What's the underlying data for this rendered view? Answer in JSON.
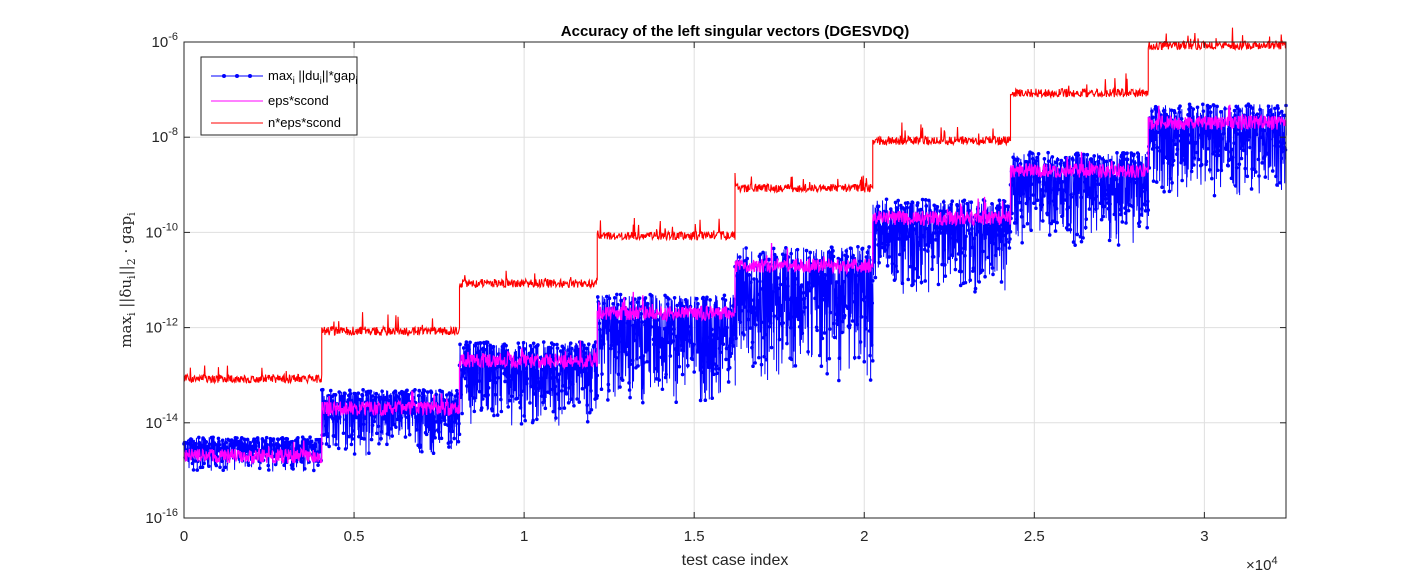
{
  "chart_data": {
    "type": "line",
    "title": "Accuracy of the left singular vectors (DGESVDQ)",
    "xlabel": "test case index",
    "ylabel": "max_i ||δu_i||_2 · gap_i",
    "x_multiplier": "×10",
    "x_multiplier_exp": "4",
    "xlim": [
      0,
      32400
    ],
    "ylim": [
      1e-16,
      1e-06
    ],
    "yscale": "log",
    "grid": true,
    "legend_position": "top-left",
    "x_ticks": [
      0,
      5000,
      10000,
      15000,
      20000,
      25000,
      30000
    ],
    "x_tick_labels": [
      "0",
      "0.5",
      "1",
      "1.5",
      "2",
      "2.5",
      "3"
    ],
    "y_ticks": [
      1e-16,
      1e-14,
      1e-12,
      1e-10,
      1e-08,
      1e-06
    ],
    "y_tick_base": "10",
    "y_tick_exps": [
      "-16",
      "-14",
      "-12",
      "-10",
      "-8",
      "-6"
    ],
    "segments": [
      {
        "x_start": 0,
        "x_end": 4050,
        "eps_scond": 2e-15,
        "n_eps_scond": 8e-14,
        "max_band": [
          9e-16,
          5e-15
        ]
      },
      {
        "x_start": 4050,
        "x_end": 8100,
        "eps_scond": 2e-14,
        "n_eps_scond": 8e-13,
        "max_band": [
          2e-15,
          5e-14
        ]
      },
      {
        "x_start": 8100,
        "x_end": 12150,
        "eps_scond": 2e-13,
        "n_eps_scond": 8e-12,
        "max_band": [
          8e-15,
          5e-13
        ]
      },
      {
        "x_start": 12150,
        "x_end": 16200,
        "eps_scond": 2e-12,
        "n_eps_scond": 8e-11,
        "max_band": [
          2e-14,
          5e-12
        ]
      },
      {
        "x_start": 16200,
        "x_end": 20250,
        "eps_scond": 2e-11,
        "n_eps_scond": 8e-10,
        "max_band": [
          6e-14,
          5e-11
        ]
      },
      {
        "x_start": 20250,
        "x_end": 24300,
        "eps_scond": 2e-10,
        "n_eps_scond": 8e-09,
        "max_band": [
          5e-12,
          5e-10
        ]
      },
      {
        "x_start": 24300,
        "x_end": 28350,
        "eps_scond": 2e-09,
        "n_eps_scond": 8e-08,
        "max_band": [
          5e-11,
          5e-09
        ]
      },
      {
        "x_start": 28350,
        "x_end": 32400,
        "eps_scond": 2e-08,
        "n_eps_scond": 8e-07,
        "max_band": [
          5e-10,
          5e-08
        ]
      }
    ],
    "series": [
      {
        "key": "max",
        "name": "max_i ||du_i||*gap_i",
        "color": "#0000ff",
        "marker": "dot"
      },
      {
        "key": "eps",
        "name": "eps*scond",
        "color": "#ff00ff"
      },
      {
        "key": "neps",
        "name": "n*eps*scond",
        "color": "#ff0000"
      }
    ]
  },
  "legend": {
    "max_pre": "max",
    "max_sub1": "i",
    "max_mid": " ||du",
    "max_sub2": "i",
    "max_post": "||*gap",
    "max_sub3": "i",
    "eps": "eps*scond",
    "neps": "n*eps*scond"
  },
  "ylabel_parts": {
    "max": "max",
    "sub_i": "i",
    "norm_open": " ||δu",
    "sub_i2": "i",
    "norm_close": "||",
    "sub_2": "2",
    "dot": " · gap",
    "sub_i3": "i"
  }
}
